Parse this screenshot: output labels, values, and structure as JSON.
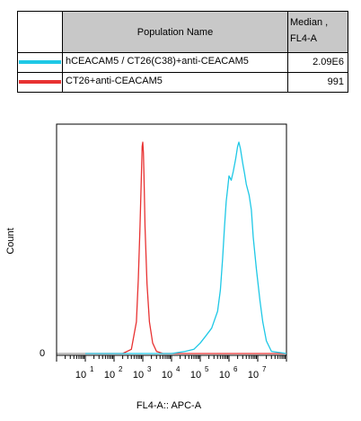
{
  "legend": {
    "header_name": "Population Name",
    "header_median_line1": "Median ,",
    "header_median_line2": "FL4-A",
    "rows": [
      {
        "name": "hCEACAM5 / CT26(C38)+anti-CEACAM5",
        "median": "2.09E6",
        "color": "#1ec8e6"
      },
      {
        "name": "CT26+anti-CEACAM5",
        "median": "991",
        "color": "#e83232"
      }
    ]
  },
  "chart_data": {
    "type": "line",
    "xlabel": "FL4-A:: APC-A",
    "ylabel": "Count",
    "x_scale": "log",
    "xlim": [
      1,
      100000000.0
    ],
    "ylim": [
      0,
      1
    ],
    "x_tick_labels": [
      {
        "base": "10",
        "exp": "1"
      },
      {
        "base": "10",
        "exp": "2"
      },
      {
        "base": "10",
        "exp": "3"
      },
      {
        "base": "10",
        "exp": "4"
      },
      {
        "base": "10",
        "exp": "5"
      },
      {
        "base": "10",
        "exp": "6"
      },
      {
        "base": "10",
        "exp": "7"
      }
    ],
    "y_tick_labels": [
      "0"
    ],
    "series": [
      {
        "name": "CT26+anti-CEACAM5",
        "color": "#e83232",
        "x": [
          10,
          200,
          400,
          600,
          700,
          800,
          900,
          950,
          1000,
          1050,
          1100,
          1200,
          1400,
          1700,
          2200,
          3000,
          5000,
          100000000.0
        ],
        "y": [
          0,
          0,
          0.02,
          0.15,
          0.35,
          0.6,
          0.85,
          0.98,
          1.0,
          0.95,
          0.85,
          0.6,
          0.33,
          0.15,
          0.05,
          0.01,
          0,
          0
        ]
      },
      {
        "name": "hCEACAM5 / CT26(C38)+anti-CEACAM5",
        "color": "#1ec8e6",
        "x": [
          10,
          10000,
          30000,
          60000,
          100000,
          150000,
          250000,
          400000,
          500000,
          600000,
          700000,
          800000,
          900000,
          1000000,
          1200000,
          1400000,
          1700000,
          2000000,
          2200000,
          2500000,
          3000000,
          3500000,
          4000000,
          5000000,
          6000000,
          7000000,
          9000000,
          12000000,
          15000000,
          20000000,
          30000000,
          100000000.0
        ],
        "y": [
          0,
          0,
          0.01,
          0.02,
          0.05,
          0.08,
          0.12,
          0.2,
          0.3,
          0.45,
          0.6,
          0.72,
          0.78,
          0.84,
          0.82,
          0.86,
          0.92,
          0.98,
          1.0,
          0.97,
          0.9,
          0.85,
          0.8,
          0.75,
          0.68,
          0.55,
          0.4,
          0.25,
          0.15,
          0.06,
          0.01,
          0
        ]
      }
    ]
  }
}
